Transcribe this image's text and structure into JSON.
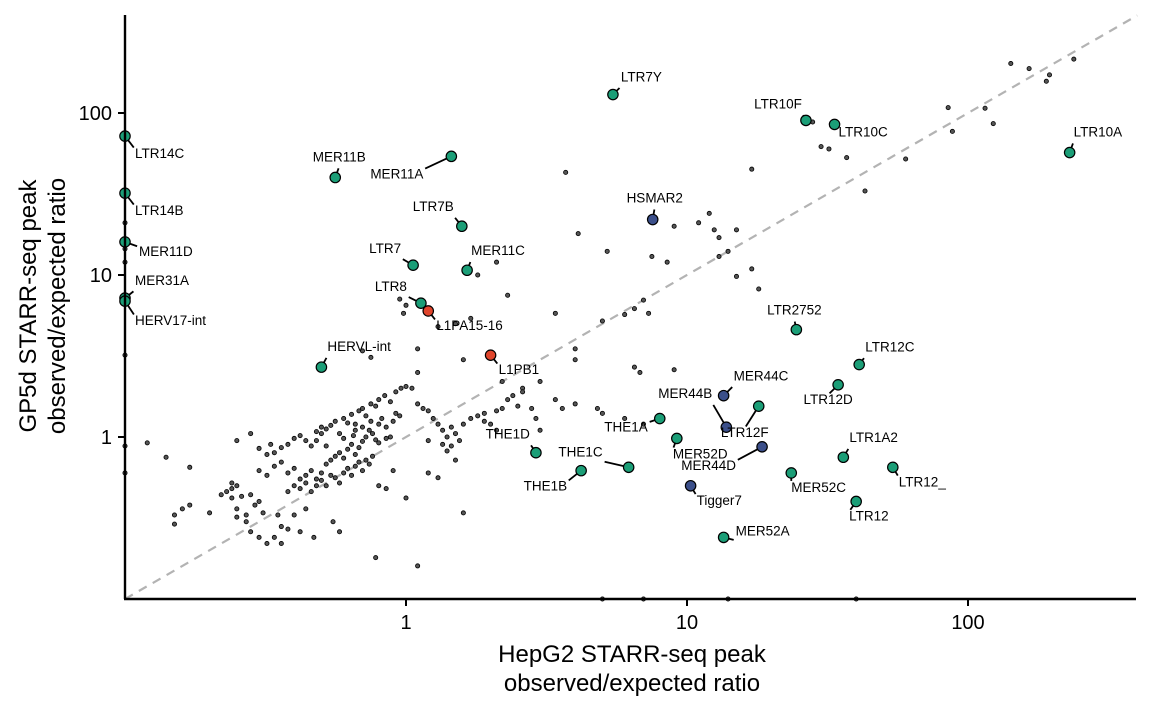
{
  "chart_data": {
    "type": "scatter",
    "xlabel_lines": [
      "HepG2 STARR-seq peak",
      "observed/expected ratio"
    ],
    "ylabel_lines": [
      "GP5d STARR-seq peak",
      "observed/expected ratio"
    ],
    "x_scale": "log10",
    "y_scale": "log10",
    "xlim": [
      0.1,
      410
    ],
    "ylim": [
      0.1,
      400
    ],
    "x_ticks": [
      1,
      10,
      100
    ],
    "x_tick_labels": [
      "1",
      "10",
      "100"
    ],
    "y_ticks": [
      1,
      10,
      100
    ],
    "y_tick_labels": [
      "1",
      "10",
      "100"
    ],
    "reference_line": "y = x, dashed grey",
    "grid": false,
    "colors": {
      "teal": "#1b9e77",
      "navy": "#3b4f8a",
      "red": "#e0452c",
      "small_point": "#000000",
      "ref_line": "#b3b3b3"
    },
    "highlighted": [
      {
        "label": "LTR7Y",
        "x": 5.45,
        "y": 130,
        "color": "teal"
      },
      {
        "label": "LTR10F",
        "x": 26.5,
        "y": 90,
        "color": "teal"
      },
      {
        "label": "LTR10C",
        "x": 33.5,
        "y": 85,
        "color": "teal"
      },
      {
        "label": "LTR10A",
        "x": 230,
        "y": 57,
        "color": "teal"
      },
      {
        "label": "LTR14C",
        "x": 0.1,
        "y": 72,
        "color": "teal"
      },
      {
        "label": "LTR14B",
        "x": 0.1,
        "y": 32,
        "color": "teal"
      },
      {
        "label": "MER11D",
        "x": 0.1,
        "y": 16,
        "color": "teal"
      },
      {
        "label": "MER31A",
        "x": 0.1,
        "y": 7.2,
        "color": "teal"
      },
      {
        "label": "HERV17-int",
        "x": 0.1,
        "y": 6.9,
        "color": "teal"
      },
      {
        "label": "MER11B",
        "x": 0.56,
        "y": 40,
        "color": "teal"
      },
      {
        "label": "MER11A",
        "x": 1.45,
        "y": 54,
        "color": "teal"
      },
      {
        "label": "LTR7B",
        "x": 1.58,
        "y": 20,
        "color": "teal"
      },
      {
        "label": "LTR7",
        "x": 1.06,
        "y": 11.5,
        "color": "teal"
      },
      {
        "label": "MER11C",
        "x": 1.65,
        "y": 10.7,
        "color": "teal"
      },
      {
        "label": "LTR8",
        "x": 1.13,
        "y": 6.7,
        "color": "teal"
      },
      {
        "label": "L1PA15-16",
        "x": 1.2,
        "y": 6.0,
        "color": "red"
      },
      {
        "label": "HSMAR2",
        "x": 7.55,
        "y": 22,
        "color": "navy"
      },
      {
        "label": "HERVL-int",
        "x": 0.5,
        "y": 2.7,
        "color": "teal"
      },
      {
        "label": "L1PB1",
        "x": 2.0,
        "y": 3.2,
        "color": "red"
      },
      {
        "label": "LTR2752",
        "x": 24.5,
        "y": 4.6,
        "color": "teal"
      },
      {
        "label": "LTR12C",
        "x": 41,
        "y": 2.8,
        "color": "teal"
      },
      {
        "label": "LTR12D",
        "x": 34.5,
        "y": 2.1,
        "color": "teal"
      },
      {
        "label": "MER44C",
        "x": 13.5,
        "y": 1.8,
        "color": "navy"
      },
      {
        "label": "MER44B",
        "x": 13.8,
        "y": 1.15,
        "color": "navy"
      },
      {
        "label": "LTR12F",
        "x": 18.0,
        "y": 1.55,
        "color": "teal"
      },
      {
        "label": "THE1A",
        "x": 8.0,
        "y": 1.3,
        "color": "teal"
      },
      {
        "label": "THE1D",
        "x": 2.9,
        "y": 0.8,
        "color": "teal"
      },
      {
        "label": "MER52D",
        "x": 9.2,
        "y": 0.98,
        "color": "teal"
      },
      {
        "label": "MER44D",
        "x": 18.5,
        "y": 0.87,
        "color": "navy"
      },
      {
        "label": "LTR1A2",
        "x": 36,
        "y": 0.75,
        "color": "teal"
      },
      {
        "label": "THE1C",
        "x": 6.2,
        "y": 0.65,
        "color": "teal"
      },
      {
        "label": "THE1B",
        "x": 4.2,
        "y": 0.62,
        "color": "teal"
      },
      {
        "label": "MER52C",
        "x": 23.5,
        "y": 0.6,
        "color": "teal"
      },
      {
        "label": "LTR12_",
        "x": 54,
        "y": 0.65,
        "color": "teal"
      },
      {
        "label": "Tigger7",
        "x": 10.3,
        "y": 0.5,
        "color": "navy"
      },
      {
        "label": "LTR12",
        "x": 40,
        "y": 0.4,
        "color": "teal"
      },
      {
        "label": "MER52A",
        "x": 13.5,
        "y": 0.24,
        "color": "teal"
      }
    ],
    "background_points": [
      [
        0.12,
        0.92
      ],
      [
        0.14,
        0.75
      ],
      [
        0.17,
        0.65
      ],
      [
        0.16,
        0.36
      ],
      [
        0.17,
        0.38
      ],
      [
        0.15,
        0.33
      ],
      [
        0.15,
        0.29
      ],
      [
        0.2,
        0.34
      ],
      [
        0.22,
        0.44
      ],
      [
        0.23,
        0.46
      ],
      [
        0.24,
        0.52
      ],
      [
        0.24,
        0.48
      ],
      [
        0.25,
        0.5
      ],
      [
        0.24,
        0.42
      ],
      [
        0.26,
        0.43
      ],
      [
        0.28,
        0.44
      ],
      [
        0.25,
        0.36
      ],
      [
        0.27,
        0.33
      ],
      [
        0.29,
        0.38
      ],
      [
        0.3,
        0.4
      ],
      [
        0.25,
        0.32
      ],
      [
        0.27,
        0.3
      ],
      [
        0.31,
        0.34
      ],
      [
        0.28,
        0.26
      ],
      [
        0.3,
        0.24
      ],
      [
        0.32,
        0.22
      ],
      [
        0.34,
        0.24
      ],
      [
        0.36,
        0.22
      ],
      [
        0.36,
        0.28
      ],
      [
        0.38,
        0.27
      ],
      [
        0.42,
        0.26
      ],
      [
        0.47,
        0.24
      ],
      [
        0.35,
        0.33
      ],
      [
        0.4,
        0.33
      ],
      [
        0.44,
        0.36
      ],
      [
        0.25,
        0.95
      ],
      [
        0.28,
        1.05
      ],
      [
        0.3,
        0.85
      ],
      [
        0.32,
        0.78
      ],
      [
        0.33,
        0.9
      ],
      [
        0.34,
        0.66
      ],
      [
        0.36,
        0.7
      ],
      [
        0.38,
        0.6
      ],
      [
        0.4,
        0.64
      ],
      [
        0.42,
        0.55
      ],
      [
        0.44,
        0.58
      ],
      [
        0.46,
        0.62
      ],
      [
        0.48,
        0.55
      ],
      [
        0.5,
        0.6
      ],
      [
        0.52,
        0.68
      ],
      [
        0.54,
        0.72
      ],
      [
        0.56,
        0.76
      ],
      [
        0.58,
        0.8
      ],
      [
        0.6,
        0.74
      ],
      [
        0.62,
        0.84
      ],
      [
        0.64,
        0.9
      ],
      [
        0.66,
        0.78
      ],
      [
        0.68,
        0.86
      ],
      [
        0.7,
        0.94
      ],
      [
        0.72,
        1.0
      ],
      [
        0.74,
        1.1
      ],
      [
        0.76,
        1.05
      ],
      [
        0.78,
        0.96
      ],
      [
        0.8,
        1.2
      ],
      [
        0.82,
        1.3
      ],
      [
        0.85,
        1.15
      ],
      [
        0.88,
        1.0
      ],
      [
        0.9,
        1.25
      ],
      [
        0.92,
        1.4
      ],
      [
        0.95,
        1.35
      ],
      [
        0.38,
        0.46
      ],
      [
        0.4,
        0.5
      ],
      [
        0.42,
        0.48
      ],
      [
        0.44,
        0.52
      ],
      [
        0.46,
        0.46
      ],
      [
        0.48,
        0.5
      ],
      [
        0.5,
        0.54
      ],
      [
        0.52,
        0.5
      ],
      [
        0.54,
        0.58
      ],
      [
        0.56,
        0.56
      ],
      [
        0.58,
        0.52
      ],
      [
        0.6,
        0.6
      ],
      [
        0.62,
        0.64
      ],
      [
        0.64,
        0.58
      ],
      [
        0.66,
        0.66
      ],
      [
        0.68,
        0.7
      ],
      [
        0.7,
        0.62
      ],
      [
        0.72,
        0.72
      ],
      [
        0.74,
        0.68
      ],
      [
        0.76,
        0.76
      ],
      [
        0.3,
        0.62
      ],
      [
        0.32,
        0.58
      ],
      [
        0.34,
        0.8
      ],
      [
        0.36,
        0.86
      ],
      [
        0.38,
        0.9
      ],
      [
        0.4,
        0.98
      ],
      [
        0.42,
        1.02
      ],
      [
        0.44,
        0.95
      ],
      [
        0.46,
        0.88
      ],
      [
        0.48,
        1.08
      ],
      [
        0.5,
        1.15
      ],
      [
        0.52,
        1.12
      ],
      [
        0.54,
        1.18
      ],
      [
        0.56,
        1.25
      ],
      [
        0.58,
        1.05
      ],
      [
        0.6,
        1.3
      ],
      [
        0.62,
        1.22
      ],
      [
        0.64,
        1.38
      ],
      [
        0.66,
        1.1
      ],
      [
        0.68,
        1.45
      ],
      [
        0.7,
        1.5
      ],
      [
        0.72,
        1.35
      ],
      [
        0.75,
        1.6
      ],
      [
        0.78,
        1.55
      ],
      [
        0.8,
        1.7
      ],
      [
        0.84,
        1.8
      ],
      [
        0.88,
        1.65
      ],
      [
        0.92,
        1.9
      ],
      [
        0.96,
        2.0
      ],
      [
        1.0,
        2.05
      ],
      [
        1.05,
        2.0
      ],
      [
        1.1,
        1.6
      ],
      [
        1.15,
        1.5
      ],
      [
        1.2,
        1.45
      ],
      [
        1.25,
        1.3
      ],
      [
        1.3,
        1.2
      ],
      [
        1.35,
        1.1
      ],
      [
        1.4,
        1.0
      ],
      [
        1.45,
        1.15
      ],
      [
        1.5,
        1.05
      ],
      [
        1.55,
        0.95
      ],
      [
        1.6,
        1.2
      ],
      [
        1.7,
        1.3
      ],
      [
        1.8,
        1.35
      ],
      [
        1.9,
        1.4
      ],
      [
        2.0,
        1.2
      ],
      [
        2.1,
        1.1
      ],
      [
        2.2,
        1.5
      ],
      [
        2.4,
        1.8
      ],
      [
        2.6,
        2.0
      ],
      [
        2.6,
        1.9
      ],
      [
        2.8,
        1.5
      ],
      [
        2.9,
        1.3
      ],
      [
        3.0,
        1.1
      ],
      [
        3.4,
        1.7
      ],
      [
        3.6,
        1.5
      ],
      [
        4.0,
        1.6
      ],
      [
        5.0,
        1.4
      ],
      [
        6.0,
        1.3
      ],
      [
        7.0,
        1.2
      ],
      [
        3.0,
        2.2
      ],
      [
        4.0,
        3.0
      ],
      [
        5.0,
        5.2
      ],
      [
        6.0,
        5.7
      ],
      [
        6.5,
        6.2
      ],
      [
        7.0,
        7.0
      ],
      [
        7.3,
        5.8
      ],
      [
        7.5,
        13
      ],
      [
        8.5,
        12
      ],
      [
        9.0,
        20
      ],
      [
        11,
        21
      ],
      [
        12,
        24
      ],
      [
        12.5,
        19
      ],
      [
        13,
        13
      ],
      [
        13,
        17
      ],
      [
        14,
        14
      ],
      [
        15,
        19
      ],
      [
        15,
        9.8
      ],
      [
        17,
        10.9
      ],
      [
        18,
        8.2
      ],
      [
        17,
        45
      ],
      [
        28,
        88
      ],
      [
        30,
        62
      ],
      [
        32,
        60
      ],
      [
        37,
        53
      ],
      [
        43,
        33
      ],
      [
        60,
        52
      ],
      [
        85,
        108
      ],
      [
        88,
        77
      ],
      [
        115,
        107
      ],
      [
        123,
        86
      ],
      [
        142,
        202
      ],
      [
        165,
        188
      ],
      [
        190,
        157
      ],
      [
        195,
        172
      ],
      [
        238,
        215
      ],
      [
        2.1,
        12
      ],
      [
        1.8,
        10
      ],
      [
        2.3,
        7.5
      ],
      [
        3.4,
        5.8
      ],
      [
        3.7,
        43
      ],
      [
        4.1,
        18
      ],
      [
        5.2,
        14
      ],
      [
        4.0,
        3.5
      ],
      [
        6.5,
        2.7
      ],
      [
        6.8,
        2.5
      ],
      [
        9.0,
        2.6
      ],
      [
        4.8,
        1.5
      ],
      [
        1.1,
        3.5
      ],
      [
        1.3,
        4.8
      ],
      [
        1.5,
        5.0
      ],
      [
        1.6,
        3.0
      ],
      [
        1.7,
        5.4
      ],
      [
        0.95,
        7.1
      ],
      [
        1.0,
        6.5
      ],
      [
        0.98,
        5.8
      ],
      [
        0.7,
        3.4
      ],
      [
        0.75,
        3.1
      ],
      [
        1.1,
        2.5
      ],
      [
        0.8,
        0.5
      ],
      [
        0.85,
        0.48
      ],
      [
        1.0,
        0.42
      ],
      [
        1.2,
        0.6
      ],
      [
        1.6,
        0.34
      ],
      [
        1.3,
        0.56
      ],
      [
        0.9,
        0.62
      ],
      [
        0.55,
        0.3
      ],
      [
        0.58,
        0.26
      ],
      [
        0.78,
        0.18
      ],
      [
        1.1,
        0.16
      ],
      [
        0.48,
        0.95
      ],
      [
        0.5,
        1.05
      ],
      [
        0.52,
        0.88
      ],
      [
        0.6,
        0.98
      ],
      [
        0.65,
        1.02
      ],
      [
        0.66,
        1.2
      ],
      [
        0.7,
        1.15
      ],
      [
        0.75,
        1.25
      ],
      [
        0.8,
        0.92
      ],
      [
        0.85,
        0.98
      ],
      [
        1.2,
        0.95
      ],
      [
        1.4,
        0.82
      ],
      [
        1.45,
        0.88
      ],
      [
        1.35,
        0.9
      ],
      [
        1.5,
        0.72
      ],
      [
        2.5,
        1.55
      ],
      [
        2.1,
        1.45
      ],
      [
        2.2,
        2.2
      ],
      [
        2.3,
        1.7
      ],
      [
        1.9,
        1.25
      ],
      [
        5.0,
        0.1
      ],
      [
        7.0,
        0.1
      ],
      [
        14,
        0.1
      ],
      [
        40,
        0.1
      ],
      [
        0.1,
        0.6
      ],
      [
        0.1,
        0.88
      ],
      [
        0.1,
        3.2
      ],
      [
        0.1,
        12
      ],
      [
        0.1,
        14.5
      ],
      [
        0.1,
        21
      ]
    ]
  }
}
